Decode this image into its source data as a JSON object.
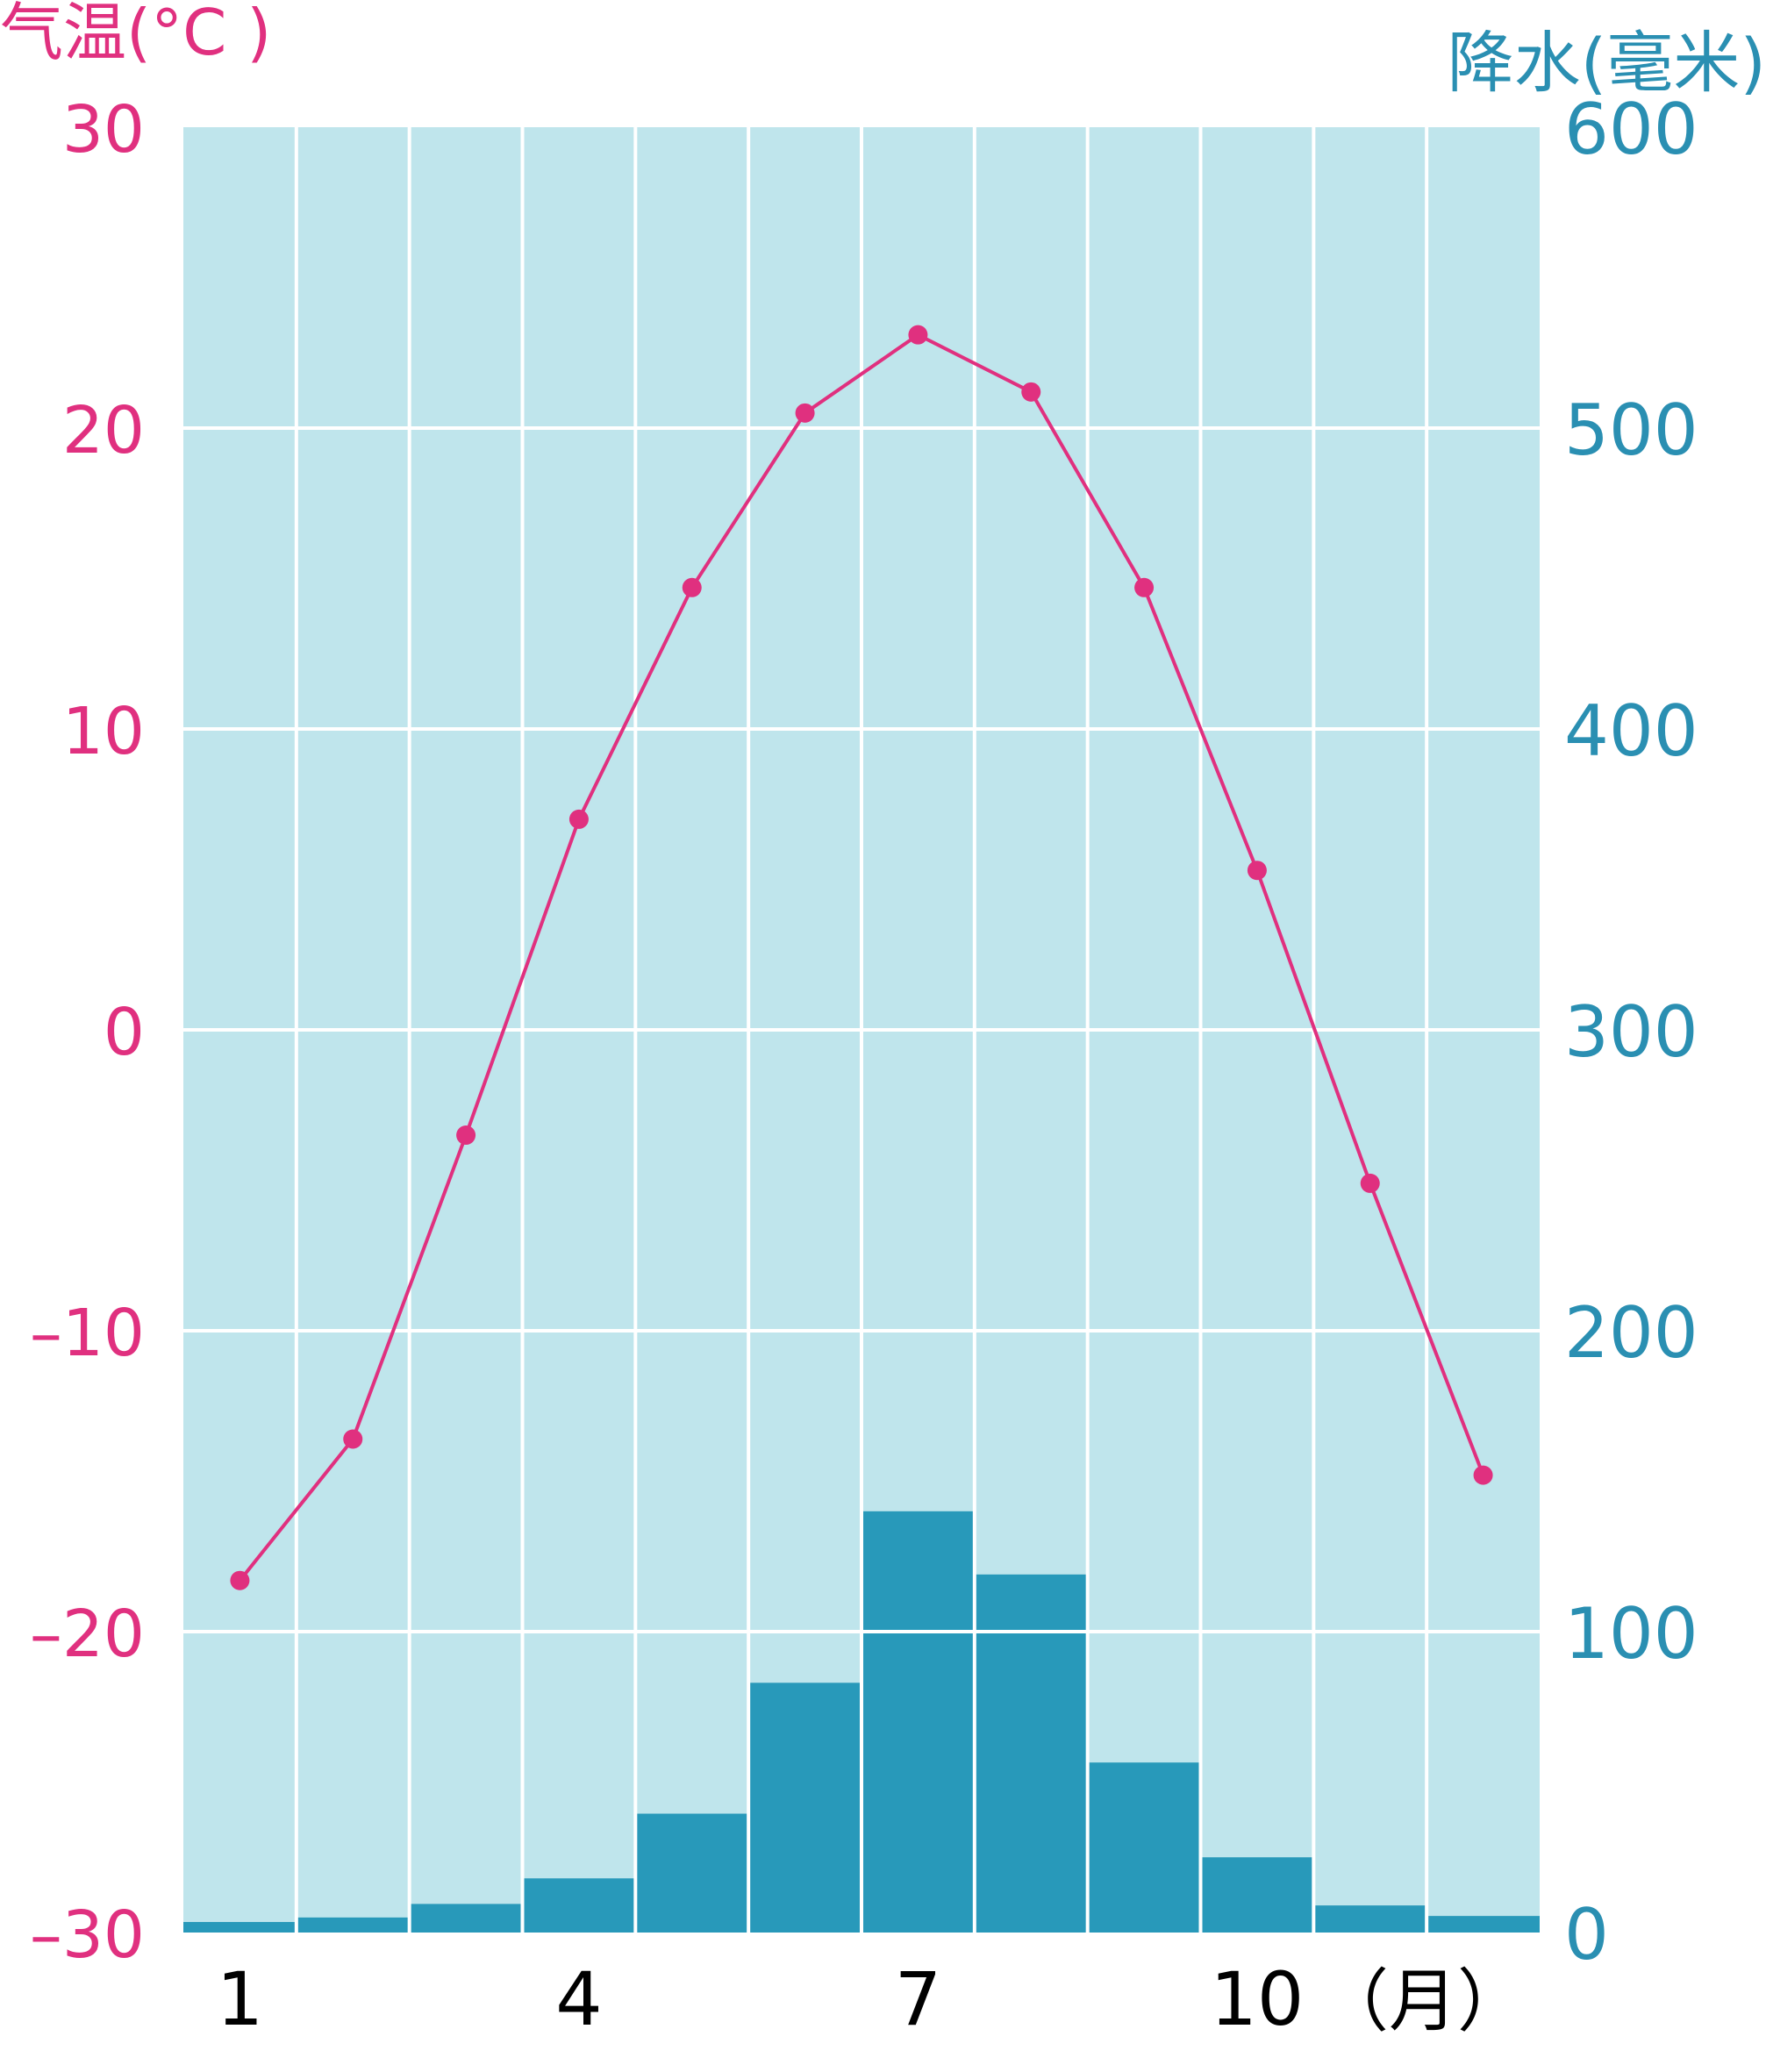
{
  "chart_data": {
    "type": "bar+line",
    "categories": [
      "1",
      "2",
      "3",
      "4",
      "5",
      "6",
      "7",
      "8",
      "9",
      "10",
      "11",
      "12"
    ],
    "x_tick_labels": [
      {
        "index": 0,
        "label": "1"
      },
      {
        "index": 3,
        "label": "4"
      },
      {
        "index": 6,
        "label": "7"
      },
      {
        "index": 9,
        "label": "10"
      }
    ],
    "x_unit_label": "（月）",
    "left_axis": {
      "label": "气温(°C )",
      "ylim": [
        -30,
        30
      ],
      "ticks": [
        30,
        20,
        10,
        0,
        -10,
        -20,
        -30
      ],
      "tick_labels": [
        "30",
        "20",
        "10",
        "0",
        "–10",
        "–20",
        "–30"
      ],
      "color": "#e0307f"
    },
    "right_axis": {
      "label": "降水(毫米)",
      "ylim": [
        0,
        600
      ],
      "ticks": [
        600,
        500,
        400,
        300,
        200,
        100,
        0
      ],
      "tick_labels": [
        "600",
        "500",
        "400",
        "300",
        "200",
        "100",
        "0"
      ],
      "color": "#2a8fb2"
    },
    "temperature": [
      -18.3,
      -13.6,
      -3.5,
      7.0,
      14.7,
      20.5,
      23.1,
      21.2,
      14.7,
      5.3,
      -5.1,
      -14.8
    ],
    "precipitation": [
      3.5,
      5,
      9.5,
      18,
      39.5,
      83,
      140,
      119,
      56.5,
      25,
      9,
      5.5
    ],
    "colors": {
      "background": "#bfe5ec",
      "grid": "#ffffff",
      "bar": "#2899ba",
      "line": "#e0307f"
    },
    "grid": true
  }
}
